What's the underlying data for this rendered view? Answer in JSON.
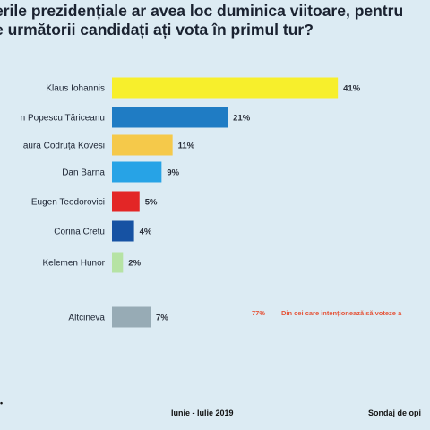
{
  "title_lines": [
    "erile prezidențiale ar avea loc duminica viitoare, pentru",
    "e următorii candidați ați vota în primul tur?"
  ],
  "chart_data": {
    "type": "bar",
    "orientation": "horizontal",
    "title": "erile prezidențiale ar avea loc duminica viitoare, pentru e următorii candidați ați vota în primul tur?",
    "categories": [
      "Klaus Iohannis",
      "n Popescu Tăriceanu",
      "aura Codruța Kovesi",
      "Dan Barna",
      "Eugen Teodorovici",
      "Corina Crețu",
      "Kelemen Hunor",
      "Altcineva"
    ],
    "values": [
      41,
      21,
      11,
      9,
      5,
      4,
      2,
      7
    ],
    "value_labels": [
      "41%",
      "21%",
      "11%",
      "9%",
      "5%",
      "4%",
      "2%",
      "7%"
    ],
    "unit": "%",
    "colors": [
      "#f7ef2c",
      "#1f7cc4",
      "#f5c94a",
      "#27a3e6",
      "#e32626",
      "#1652a3",
      "#b6e3a4",
      "#97abb5"
    ],
    "legend": "none",
    "grid": false
  },
  "note": {
    "value": "77%",
    "text": "Din cei care intenționează să voteze a"
  },
  "footer": {
    "period": "Iunie - Iulie 2019",
    "source": "Sondaj de opi",
    "mark": "•"
  }
}
